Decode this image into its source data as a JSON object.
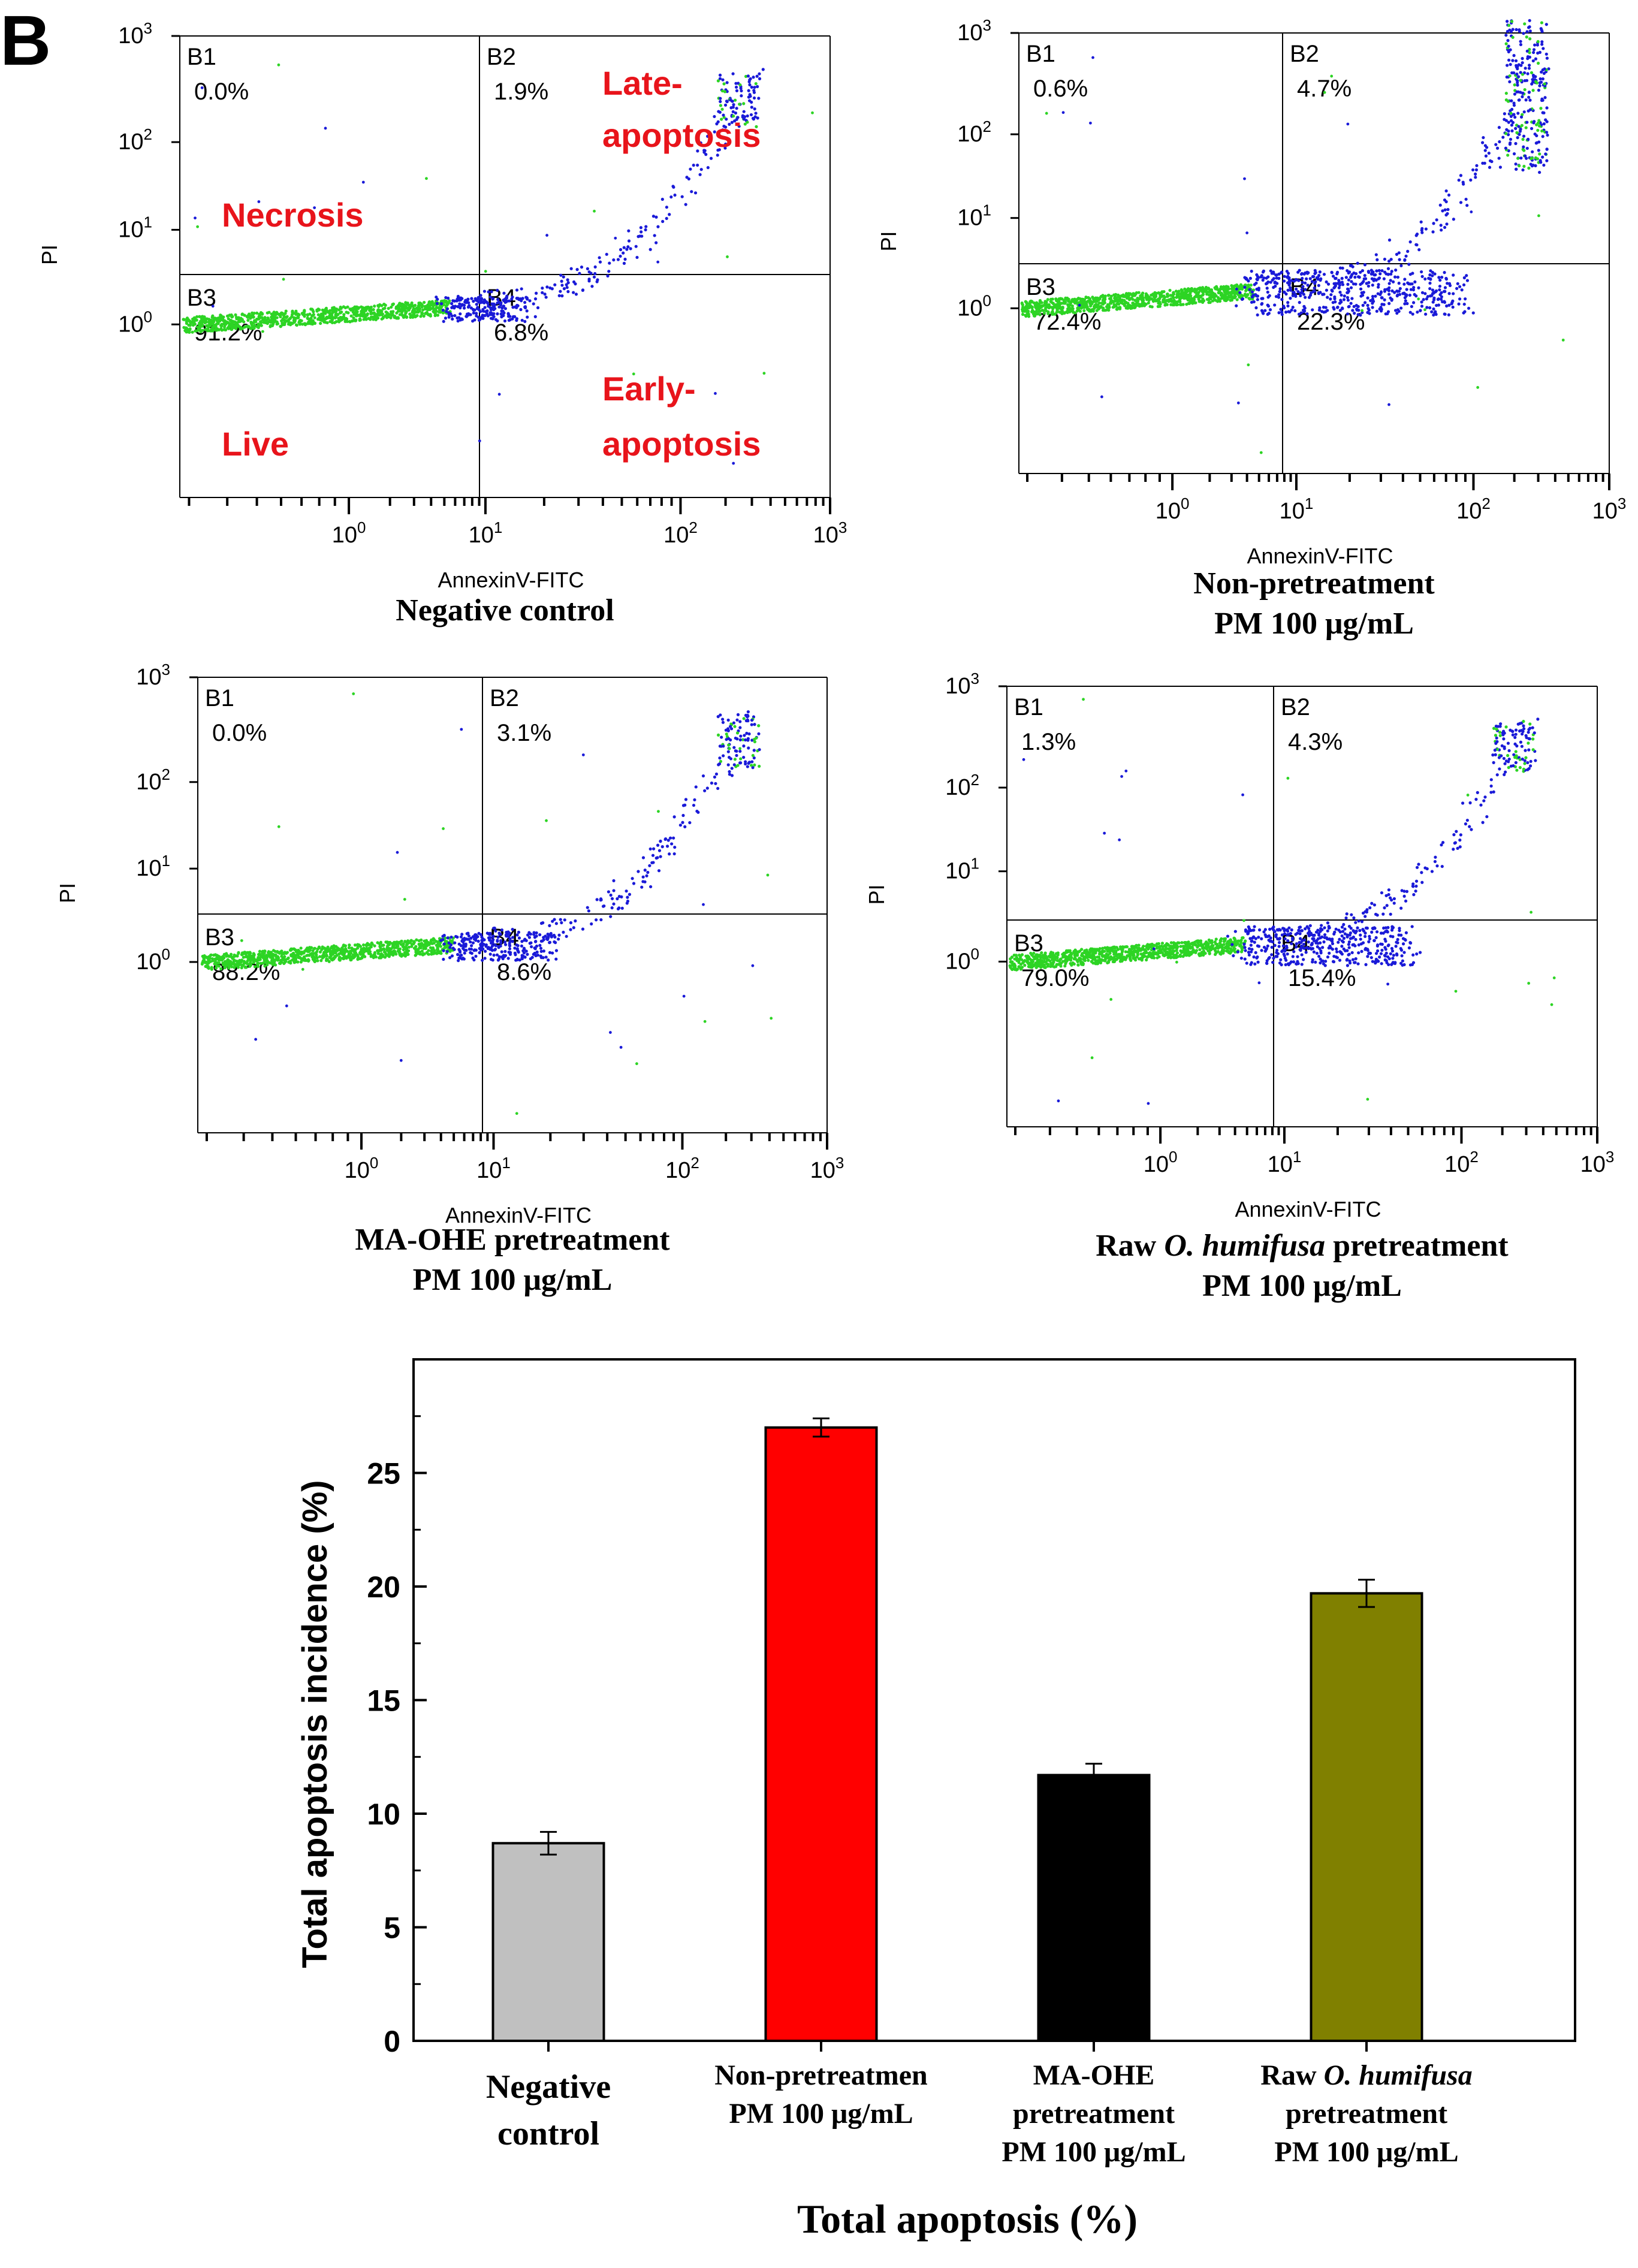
{
  "panel_label": "B",
  "flow_plots": [
    {
      "id": "negative-control",
      "caption": [
        "Negative control"
      ],
      "xlabel": "AnnexinV-FITC",
      "ylabel": "PI",
      "quadrants": [
        {
          "name": "B1",
          "value": "0.0%"
        },
        {
          "name": "B2",
          "value": "1.9%"
        },
        {
          "name": "B3",
          "value": "91.2%"
        },
        {
          "name": "B4",
          "value": "6.8%"
        }
      ],
      "annotations": [
        "Necrosis",
        "Late-",
        "apoptosis",
        "Live",
        "Early-",
        "apoptosis"
      ],
      "annotation_color": "#e8141b"
    },
    {
      "id": "non-pretreatment",
      "caption": [
        "Non-pretreatment",
        "PM 100 μg/mL"
      ],
      "xlabel": "AnnexinV-FITC",
      "ylabel": "PI",
      "quadrants": [
        {
          "name": "B1",
          "value": "0.6%"
        },
        {
          "name": "B2",
          "value": "4.7%"
        },
        {
          "name": "B3",
          "value": "72.4%"
        },
        {
          "name": "B4",
          "value": "22.3%"
        }
      ]
    },
    {
      "id": "ma-ohe",
      "caption": [
        "MA-OHE pretreatment",
        "PM 100 μg/mL"
      ],
      "xlabel": "AnnexinV-FITC",
      "ylabel": "PI",
      "quadrants": [
        {
          "name": "B1",
          "value": "0.0%"
        },
        {
          "name": "B2",
          "value": "3.1%"
        },
        {
          "name": "B3",
          "value": "88.2%"
        },
        {
          "name": "B4",
          "value": "8.6%"
        }
      ]
    },
    {
      "id": "raw-o-humifusa",
      "caption_parts": [
        {
          "text": "Raw ",
          "italic": false
        },
        {
          "text": "O. humifusa",
          "italic": true
        },
        {
          "text": " pretreatment",
          "italic": false
        }
      ],
      "caption_line2": "PM 100 μg/mL",
      "xlabel": "AnnexinV-FITC",
      "ylabel": "PI",
      "quadrants": [
        {
          "name": "B1",
          "value": "1.3%"
        },
        {
          "name": "B2",
          "value": "4.3%"
        },
        {
          "name": "B3",
          "value": "79.0%"
        },
        {
          "name": "B4",
          "value": "15.4%"
        }
      ]
    }
  ],
  "flow_axis_ticks": {
    "base": "10",
    "exponents": [
      "0",
      "1",
      "2",
      "3"
    ]
  },
  "dot_colors": {
    "negative": "#2dd424",
    "positive": "#1a1ad8"
  },
  "chart_data": {
    "type": "bar",
    "categories": [
      [
        "Negative",
        "control"
      ],
      [
        "Non-pretreatmen",
        "PM 100 μg/mL"
      ],
      [
        "MA-OHE",
        "pretreatment",
        "PM 100 μg/mL"
      ],
      [
        "Raw O. humifusa",
        "pretreatment",
        "PM 100 μg/mL"
      ]
    ],
    "values": [
      8.7,
      27.0,
      11.7,
      19.7
    ],
    "errors": [
      0.5,
      0.4,
      0.5,
      0.6
    ],
    "colors": [
      "#c0c0c0",
      "#ff0000",
      "#000000",
      "#808000"
    ],
    "xlabel": "Total apoptosis (%)",
    "ylabel": "Total apoptosis incidence (%)",
    "ylim": [
      0,
      30
    ],
    "yticks": [
      "0",
      "5",
      "10",
      "15",
      "20",
      "25"
    ]
  }
}
